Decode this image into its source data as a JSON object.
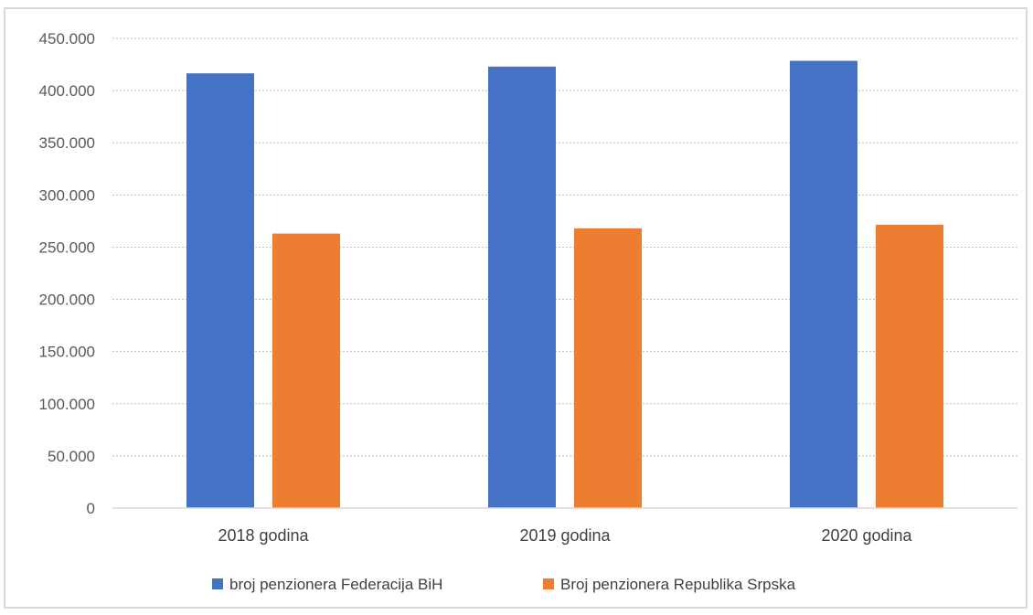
{
  "chart_data": {
    "type": "bar",
    "categories": [
      "2018 godina",
      "2019 godina",
      "2020 godina"
    ],
    "series": [
      {
        "name": "broj penzionera Federacija BiH",
        "color": "#4472c4",
        "values": [
          416500,
          423000,
          428500
        ]
      },
      {
        "name": "Broj penzionera Republika Srpska",
        "color": "#ed7d31",
        "values": [
          263000,
          268000,
          271500
        ]
      }
    ],
    "y_ticks": [
      "0",
      "50.000",
      "100.000",
      "150.000",
      "200.000",
      "250.000",
      "300.000",
      "350.000",
      "400.000",
      "450.000"
    ],
    "ylim": [
      0,
      450000
    ],
    "grid": true,
    "legend_position": "bottom",
    "title": "",
    "xlabel": "",
    "ylabel": ""
  }
}
